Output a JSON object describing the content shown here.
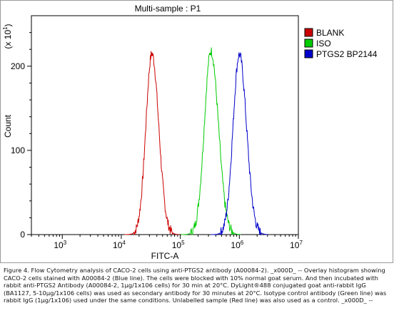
{
  "chart_data": {
    "type": "line",
    "title": "Multi-sample : P1",
    "xlabel": "FITC-A",
    "ylabel": "Count",
    "y_multiplier_label": "(x 10",
    "y_multiplier_exp": "1",
    "y_multiplier_close": ")",
    "x_scale": "log",
    "xlim": [
      300,
      10000000
    ],
    "ylim": [
      0,
      260
    ],
    "x_ticks": [
      {
        "value": 1000,
        "base": "10",
        "exp": "3"
      },
      {
        "value": 10000,
        "base": "10",
        "exp": "4"
      },
      {
        "value": 100000,
        "base": "10",
        "exp": "5"
      },
      {
        "value": 1000000,
        "base": "10",
        "exp": "6"
      },
      {
        "value": 10000000,
        "base": "10",
        "exp": "7"
      }
    ],
    "y_ticks": [
      0,
      100,
      200
    ],
    "grid": false,
    "legend_position": "right",
    "series": [
      {
        "name": "BLANK",
        "color": "#cc0000",
        "peak_x": 33000,
        "peak_y": 215,
        "width_decades": 0.11
      },
      {
        "name": "ISO",
        "color": "#00cc00",
        "peak_x": 330000,
        "peak_y": 218,
        "width_decades": 0.12
      },
      {
        "name": "PTGS2 BP2144",
        "color": "#0000cc",
        "peak_x": 1000000,
        "peak_y": 214,
        "width_decades": 0.115
      }
    ]
  },
  "caption": "Figure 4. Flow Cytometry analysis of CACO-2 cells using anti-PTGS2 antibody (A00084-2). _x000D_ -- Overlay histogram showing CACO-2 cells stained with A00084-2 (Blue line). The cells were blocked with 10% normal goat serum. And then incubated with rabbit anti-PTGS2 Antibody (A00084-2, 1μg/1x106 cells) for 30 min at 20°C. DyLight®488 conjugated goat anti-rabbit IgG (BA1127, 5-10μg/1x106 cells) was used as secondary antibody for 30 minutes at 20°C. Isotype control antibody (Green line) was rabbit IgG (1μg/1x106) used under the same conditions. Unlabelled sample (Red line) was also used as a control. _x000D_ --"
}
